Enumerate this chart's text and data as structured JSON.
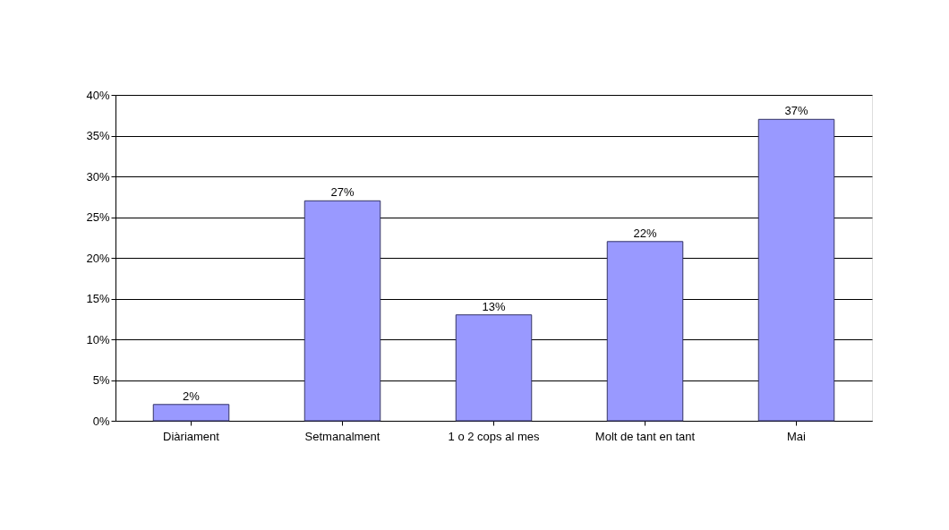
{
  "chart_data": {
    "type": "bar",
    "categories": [
      "Diàriament",
      "Setmanalment",
      "1 o 2 cops al mes",
      "Molt de tant en tant",
      "Mai"
    ],
    "values": [
      2,
      27,
      13,
      22,
      37
    ],
    "value_labels": [
      "2%",
      "27%",
      "13%",
      "22%",
      "37%"
    ],
    "color": "#9999ff",
    "ylim": [
      0,
      40
    ],
    "yticks": [
      {
        "value": 0,
        "label": "0%"
      },
      {
        "value": 5,
        "label": "5%"
      },
      {
        "value": 10,
        "label": "10%"
      },
      {
        "value": 15,
        "label": "15%"
      },
      {
        "value": 20,
        "label": "20%"
      },
      {
        "value": 25,
        "label": "25%"
      },
      {
        "value": 30,
        "label": "30%"
      },
      {
        "value": 35,
        "label": "35%"
      },
      {
        "value": 40,
        "label": "40%"
      }
    ],
    "grid": "y"
  }
}
